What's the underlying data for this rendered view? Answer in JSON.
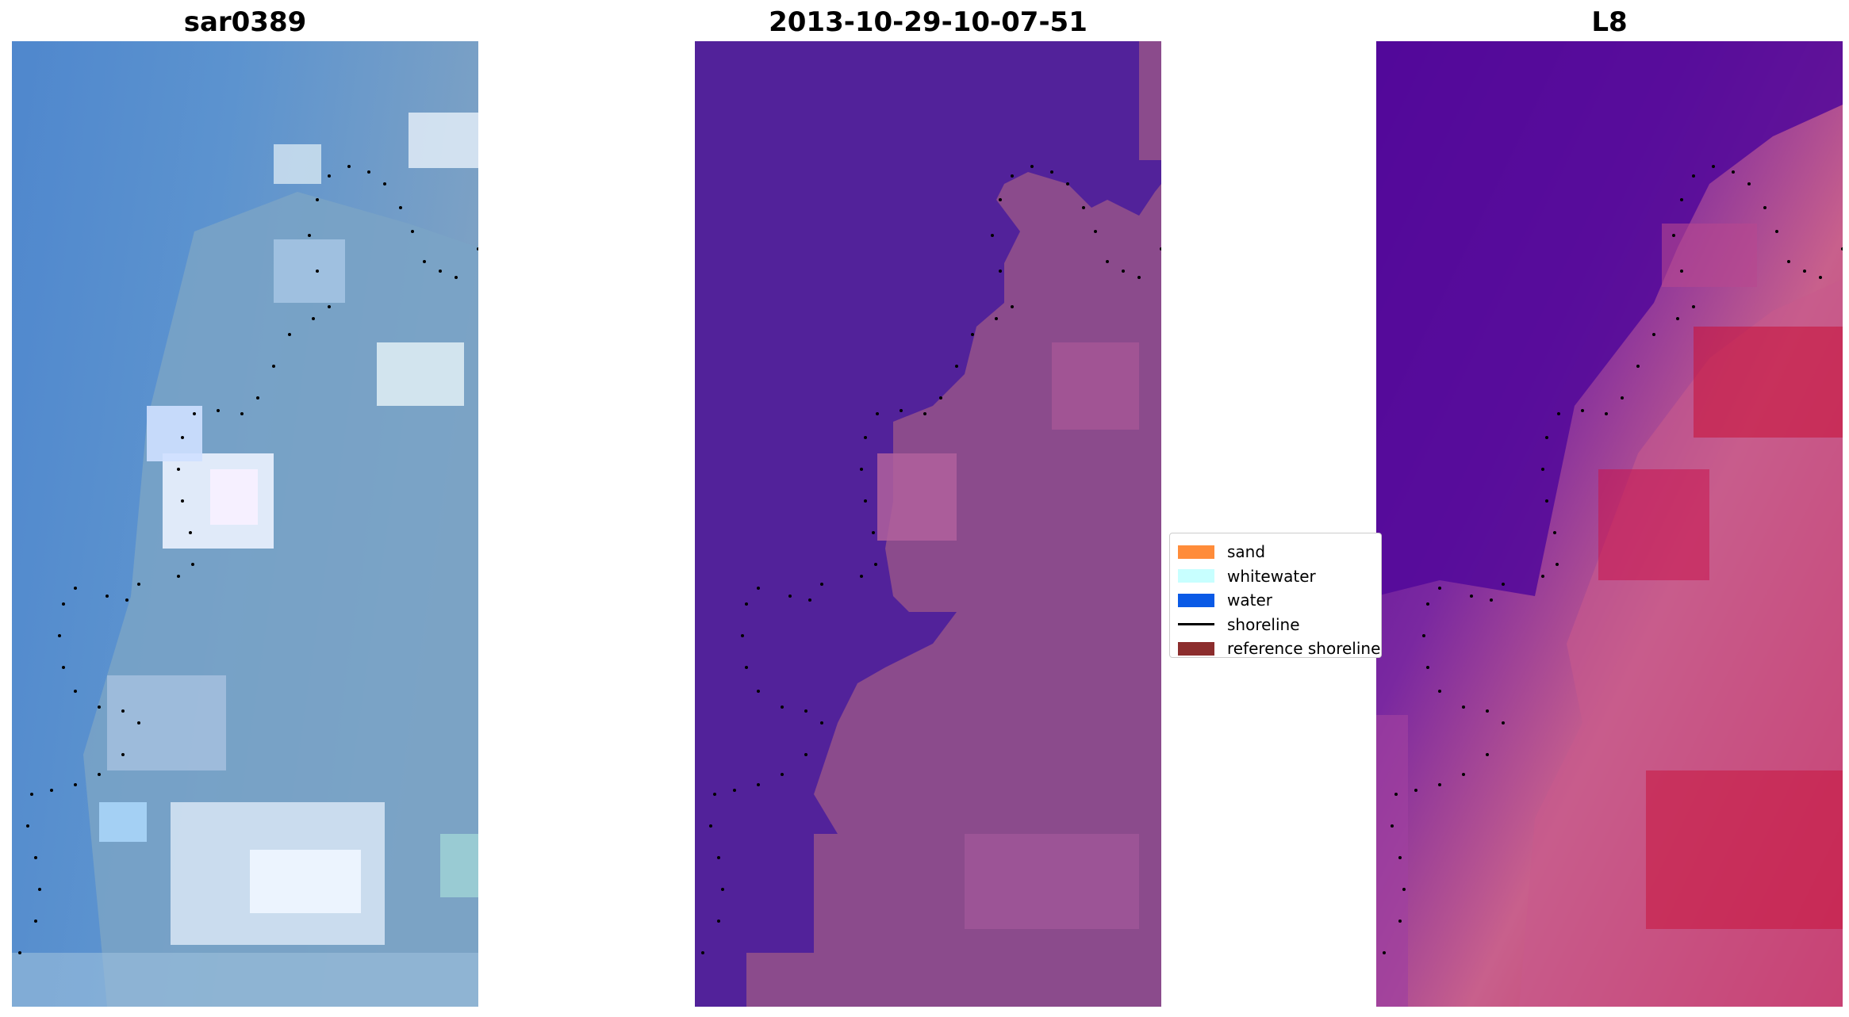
{
  "panels": [
    {
      "title": "sar0389"
    },
    {
      "title": "2013-10-29-10-07-51"
    },
    {
      "title": "L8"
    }
  ],
  "legend": {
    "items": [
      {
        "label": "sand",
        "color": "#ff8c3a",
        "kind": "patch"
      },
      {
        "label": "whitewater",
        "color": "#c8ffff",
        "kind": "patch"
      },
      {
        "label": "water",
        "color": "#0a5ae6",
        "kind": "patch"
      },
      {
        "label": "shoreline",
        "color": "#000000",
        "kind": "line"
      },
      {
        "label": "reference shoreline",
        "color": "#8c2d2d",
        "kind": "patch"
      }
    ]
  },
  "colors": {
    "rgb_water": "#5a8fd0",
    "rgb_land": "#8fb0cc",
    "rgb_cloud": "#e8f0ff",
    "class_water": "#52229a",
    "class_land": "#8c4a8c",
    "class_land_light": "#b0609c",
    "index_water": "#52089a",
    "index_land": "#c8608c",
    "index_high": "#c8143c",
    "shoreline_dots": "#000000"
  }
}
